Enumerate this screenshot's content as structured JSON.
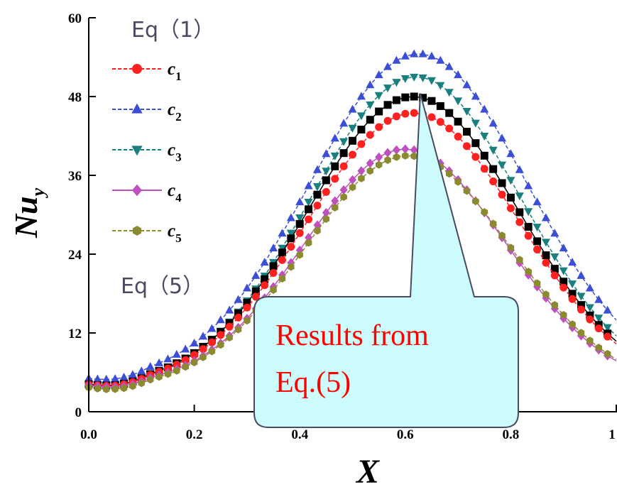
{
  "chart_data": {
    "type": "scatter",
    "xlabel": "X",
    "ylabel_main": "Nu",
    "ylabel_sub": "y",
    "xlim": [
      0,
      1.0
    ],
    "ylim": [
      0,
      60
    ],
    "x_ticks": [
      "0.0",
      "0.2",
      "0.4",
      "0.6",
      "0.8",
      "1"
    ],
    "y_ticks": [
      "0",
      "12",
      "24",
      "36",
      "48",
      "60"
    ],
    "legend_placement": "top-left",
    "series": [
      {
        "name": "c",
        "sub": "1",
        "color": "#ff2020",
        "marker": "circle",
        "line": "dash",
        "peak": 45.5,
        "peak_x": 0.615,
        "width": 0.2
      },
      {
        "name": "c",
        "sub": "2",
        "color": "#3b4fd6",
        "marker": "triangle-up",
        "line": "dashdot",
        "peak": 54.5,
        "peak_x": 0.625,
        "width": 0.205
      },
      {
        "name": "c",
        "sub": "3",
        "color": "#1a7f7f",
        "marker": "triangle-down",
        "line": "dash",
        "peak": 51.0,
        "peak_x": 0.62,
        "width": 0.2
      },
      {
        "name": "c",
        "sub": "4",
        "color": "#c050c0",
        "marker": "diamond",
        "line": "solid",
        "peak": 40.0,
        "peak_x": 0.6,
        "width": 0.19
      },
      {
        "name": "c",
        "sub": "5",
        "color": "#8a8a30",
        "marker": "hexagon",
        "line": "dash",
        "peak": 39.0,
        "peak_x": 0.605,
        "width": 0.195
      }
    ],
    "black_series": {
      "color": "#000000",
      "marker": "square",
      "peak": 48.0,
      "peak_x": 0.615,
      "width": 0.2
    }
  },
  "annotations": {
    "top_note": "Eq（1）",
    "bottom_note": "Eq（5）",
    "callout_line1": "Results from",
    "callout_line2": "Eq.(5)"
  },
  "colors": {
    "callout_fill": "#ccfcfc",
    "callout_stroke": "#4a4a63"
  }
}
